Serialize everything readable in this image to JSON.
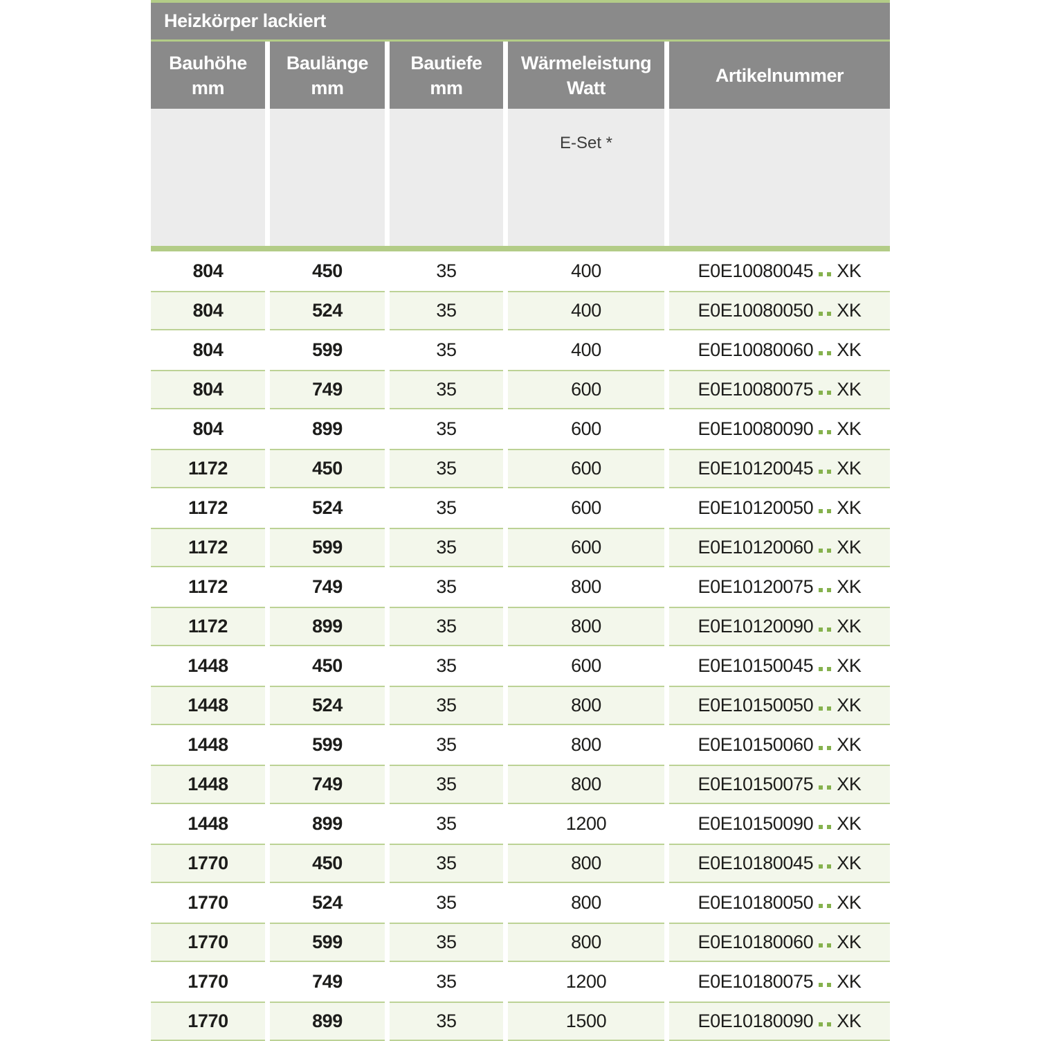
{
  "title": "Heizkörper lackiert",
  "columns": [
    {
      "line1": "Bauhöhe",
      "line2": "mm"
    },
    {
      "line1": "Baulänge",
      "line2": "mm"
    },
    {
      "line1": "Bautiefe",
      "line2": "mm"
    },
    {
      "line1": "Wärmeleistung",
      "line2": "Watt"
    },
    {
      "line1": "Artikelnummer",
      "line2": ""
    }
  ],
  "subheader": {
    "eset_label": "E-Set *"
  },
  "rows": [
    {
      "bauhoehe": "804",
      "baulaenge": "450",
      "bautiefe": "35",
      "watt": "400",
      "artikel_base": "E0E10080045",
      "artikel_dots": "..",
      "artikel_suffix": "XK"
    },
    {
      "bauhoehe": "804",
      "baulaenge": "524",
      "bautiefe": "35",
      "watt": "400",
      "artikel_base": "E0E10080050",
      "artikel_dots": "..",
      "artikel_suffix": "XK"
    },
    {
      "bauhoehe": "804",
      "baulaenge": "599",
      "bautiefe": "35",
      "watt": "400",
      "artikel_base": "E0E10080060",
      "artikel_dots": "..",
      "artikel_suffix": "XK"
    },
    {
      "bauhoehe": "804",
      "baulaenge": "749",
      "bautiefe": "35",
      "watt": "600",
      "artikel_base": "E0E10080075",
      "artikel_dots": "..",
      "artikel_suffix": "XK"
    },
    {
      "bauhoehe": "804",
      "baulaenge": "899",
      "bautiefe": "35",
      "watt": "600",
      "artikel_base": "E0E10080090",
      "artikel_dots": "..",
      "artikel_suffix": "XK"
    },
    {
      "bauhoehe": "1172",
      "baulaenge": "450",
      "bautiefe": "35",
      "watt": "600",
      "artikel_base": "E0E10120045",
      "artikel_dots": "..",
      "artikel_suffix": "XK"
    },
    {
      "bauhoehe": "1172",
      "baulaenge": "524",
      "bautiefe": "35",
      "watt": "600",
      "artikel_base": "E0E10120050",
      "artikel_dots": "..",
      "artikel_suffix": "XK"
    },
    {
      "bauhoehe": "1172",
      "baulaenge": "599",
      "bautiefe": "35",
      "watt": "600",
      "artikel_base": "E0E10120060",
      "artikel_dots": "..",
      "artikel_suffix": "XK"
    },
    {
      "bauhoehe": "1172",
      "baulaenge": "749",
      "bautiefe": "35",
      "watt": "800",
      "artikel_base": "E0E10120075",
      "artikel_dots": "..",
      "artikel_suffix": "XK"
    },
    {
      "bauhoehe": "1172",
      "baulaenge": "899",
      "bautiefe": "35",
      "watt": "800",
      "artikel_base": "E0E10120090",
      "artikel_dots": "..",
      "artikel_suffix": "XK"
    },
    {
      "bauhoehe": "1448",
      "baulaenge": "450",
      "bautiefe": "35",
      "watt": "600",
      "artikel_base": "E0E10150045",
      "artikel_dots": "..",
      "artikel_suffix": "XK"
    },
    {
      "bauhoehe": "1448",
      "baulaenge": "524",
      "bautiefe": "35",
      "watt": "800",
      "artikel_base": "E0E10150050",
      "artikel_dots": "..",
      "artikel_suffix": "XK"
    },
    {
      "bauhoehe": "1448",
      "baulaenge": "599",
      "bautiefe": "35",
      "watt": "800",
      "artikel_base": "E0E10150060",
      "artikel_dots": "..",
      "artikel_suffix": "XK"
    },
    {
      "bauhoehe": "1448",
      "baulaenge": "749",
      "bautiefe": "35",
      "watt": "800",
      "artikel_base": "E0E10150075",
      "artikel_dots": "..",
      "artikel_suffix": "XK"
    },
    {
      "bauhoehe": "1448",
      "baulaenge": "899",
      "bautiefe": "35",
      "watt": "1200",
      "artikel_base": "E0E10150090",
      "artikel_dots": "..",
      "artikel_suffix": "XK"
    },
    {
      "bauhoehe": "1770",
      "baulaenge": "450",
      "bautiefe": "35",
      "watt": "800",
      "artikel_base": "E0E10180045",
      "artikel_dots": "..",
      "artikel_suffix": "XK"
    },
    {
      "bauhoehe": "1770",
      "baulaenge": "524",
      "bautiefe": "35",
      "watt": "800",
      "artikel_base": "E0E10180050",
      "artikel_dots": "..",
      "artikel_suffix": "XK"
    },
    {
      "bauhoehe": "1770",
      "baulaenge": "599",
      "bautiefe": "35",
      "watt": "800",
      "artikel_base": "E0E10180060",
      "artikel_dots": "..",
      "artikel_suffix": "XK"
    },
    {
      "bauhoehe": "1770",
      "baulaenge": "749",
      "bautiefe": "35",
      "watt": "1200",
      "artikel_base": "E0E10180075",
      "artikel_dots": "..",
      "artikel_suffix": "XK"
    },
    {
      "bauhoehe": "1770",
      "baulaenge": "899",
      "bautiefe": "35",
      "watt": "1500",
      "artikel_base": "E0E10180090",
      "artikel_dots": "..",
      "artikel_suffix": "XK"
    }
  ],
  "colors": {
    "header_gray": "#8a8a8a",
    "subheader_gray": "#ececec",
    "accent_green": "#b3cc87",
    "row_green_bg": "#f3f7eb",
    "row_green_border": "#bcd295",
    "dot_green": "#85b14d",
    "header_text": "#ffffff",
    "text_dark": "#1d1d1b"
  }
}
